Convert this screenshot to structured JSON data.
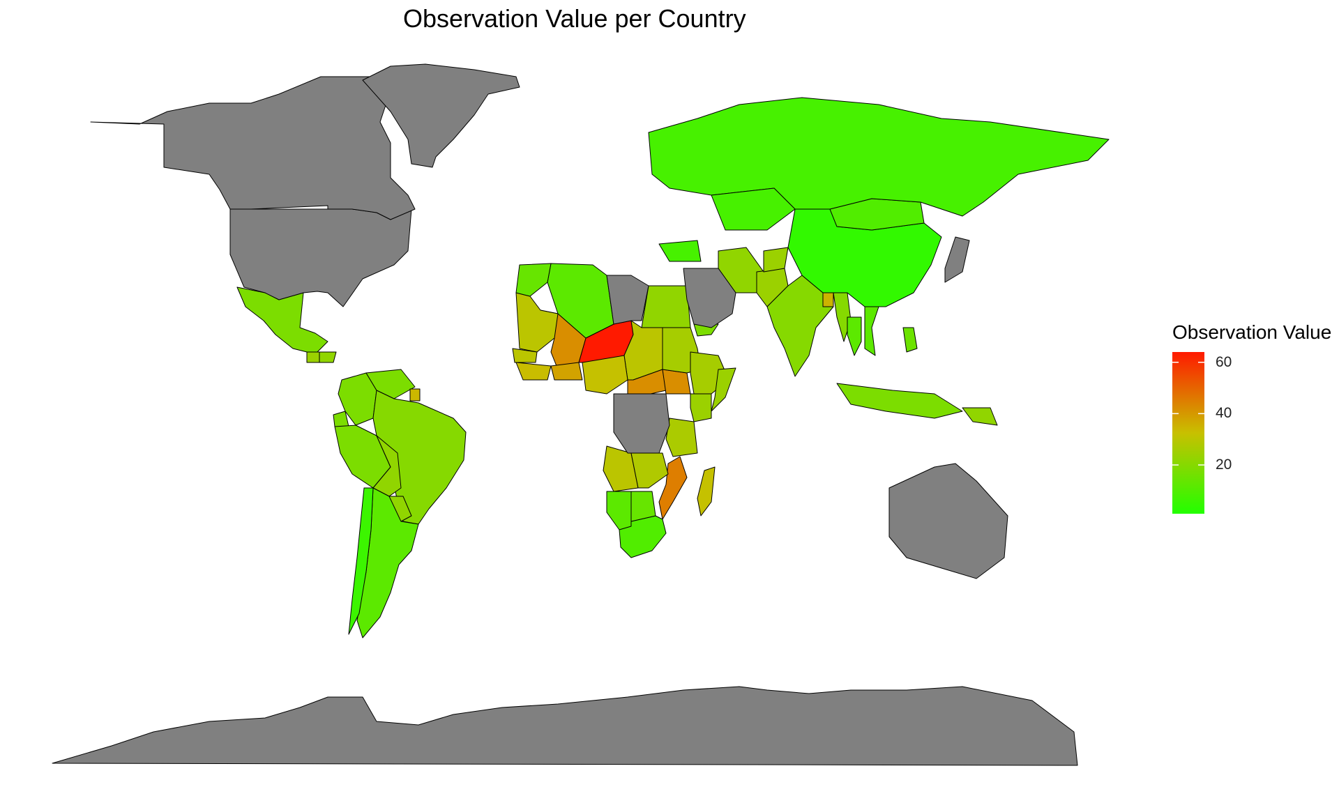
{
  "title": "Observation Value per Country",
  "legend": {
    "title": "Observation Value",
    "ticks": [
      60,
      40,
      20
    ],
    "range": [
      1,
      64
    ],
    "colors": {
      "low": "#22ff00",
      "mid": "#c8c000",
      "high": "#ff1a00"
    }
  },
  "no_data_color": "#808080",
  "chart_data": {
    "type": "heatmap",
    "title": "Observation Value per Country",
    "legend_title": "Observation Value",
    "legend_placement": "right",
    "scale_range": [
      1,
      64
    ],
    "regions": [
      {
        "name": "Niger",
        "value": 64
      },
      {
        "name": "Mali",
        "value": 42
      },
      {
        "name": "Burkina Faso",
        "value": 38
      },
      {
        "name": "Chad",
        "value": 30
      },
      {
        "name": "Central African Republic",
        "value": 42
      },
      {
        "name": "South Sudan",
        "value": 42
      },
      {
        "name": "Mozambique",
        "value": 45
      },
      {
        "name": "Madagascar",
        "value": 32
      },
      {
        "name": "Mauritania",
        "value": 30
      },
      {
        "name": "Senegal",
        "value": 30
      },
      {
        "name": "Guinea",
        "value": 33
      },
      {
        "name": "Nigeria",
        "value": 32
      },
      {
        "name": "Sudan",
        "value": 26
      },
      {
        "name": "Ethiopia",
        "value": 26
      },
      {
        "name": "Somalia",
        "value": 24
      },
      {
        "name": "Kenya",
        "value": 24
      },
      {
        "name": "Tanzania",
        "value": 27
      },
      {
        "name": "Angola",
        "value": 30
      },
      {
        "name": "Zambia",
        "value": 28
      },
      {
        "name": "Egypt",
        "value": 22
      },
      {
        "name": "Algeria",
        "value": 12
      },
      {
        "name": "Morocco",
        "value": 14
      },
      {
        "name": "South Africa",
        "value": 10
      },
      {
        "name": "Namibia",
        "value": 12
      },
      {
        "name": "Botswana",
        "value": 14
      },
      {
        "name": "Yemen",
        "value": 18
      },
      {
        "name": "Iran",
        "value": 22
      },
      {
        "name": "Pakistan",
        "value": 24
      },
      {
        "name": "Afghanistan",
        "value": 24
      },
      {
        "name": "India",
        "value": 20
      },
      {
        "name": "Bangladesh",
        "value": 35
      },
      {
        "name": "Myanmar",
        "value": 20
      },
      {
        "name": "Thailand",
        "value": 12
      },
      {
        "name": "Vietnam",
        "value": 12
      },
      {
        "name": "Indonesia",
        "value": 18
      },
      {
        "name": "Philippines",
        "value": 15
      },
      {
        "name": "Papua New Guinea",
        "value": 22
      },
      {
        "name": "China",
        "value": 4
      },
      {
        "name": "Mongolia",
        "value": 10
      },
      {
        "name": "Russia",
        "value": 8
      },
      {
        "name": "Kazakhstan",
        "value": 8
      },
      {
        "name": "Turkey",
        "value": 8
      },
      {
        "name": "Mexico",
        "value": 18
      },
      {
        "name": "Guatemala",
        "value": 24
      },
      {
        "name": "Honduras",
        "value": 22
      },
      {
        "name": "Colombia",
        "value": 18
      },
      {
        "name": "Venezuela",
        "value": 18
      },
      {
        "name": "Suriname",
        "value": 34
      },
      {
        "name": "Ecuador",
        "value": 18
      },
      {
        "name": "Peru",
        "value": 18
      },
      {
        "name": "Brazil",
        "value": 20
      },
      {
        "name": "Bolivia",
        "value": 22
      },
      {
        "name": "Paraguay",
        "value": 22
      },
      {
        "name": "Argentina",
        "value": 12
      },
      {
        "name": "Chile",
        "value": 6
      },
      {
        "name": "United States",
        "value": null
      },
      {
        "name": "Canada",
        "value": null
      },
      {
        "name": "Greenland",
        "value": null
      },
      {
        "name": "Australia",
        "value": null
      },
      {
        "name": "Antarctica",
        "value": null
      },
      {
        "name": "Saudi Arabia",
        "value": null
      },
      {
        "name": "Libya",
        "value": null
      },
      {
        "name": "Democratic Republic of the Congo",
        "value": null
      },
      {
        "name": "Japan",
        "value": null
      }
    ]
  }
}
